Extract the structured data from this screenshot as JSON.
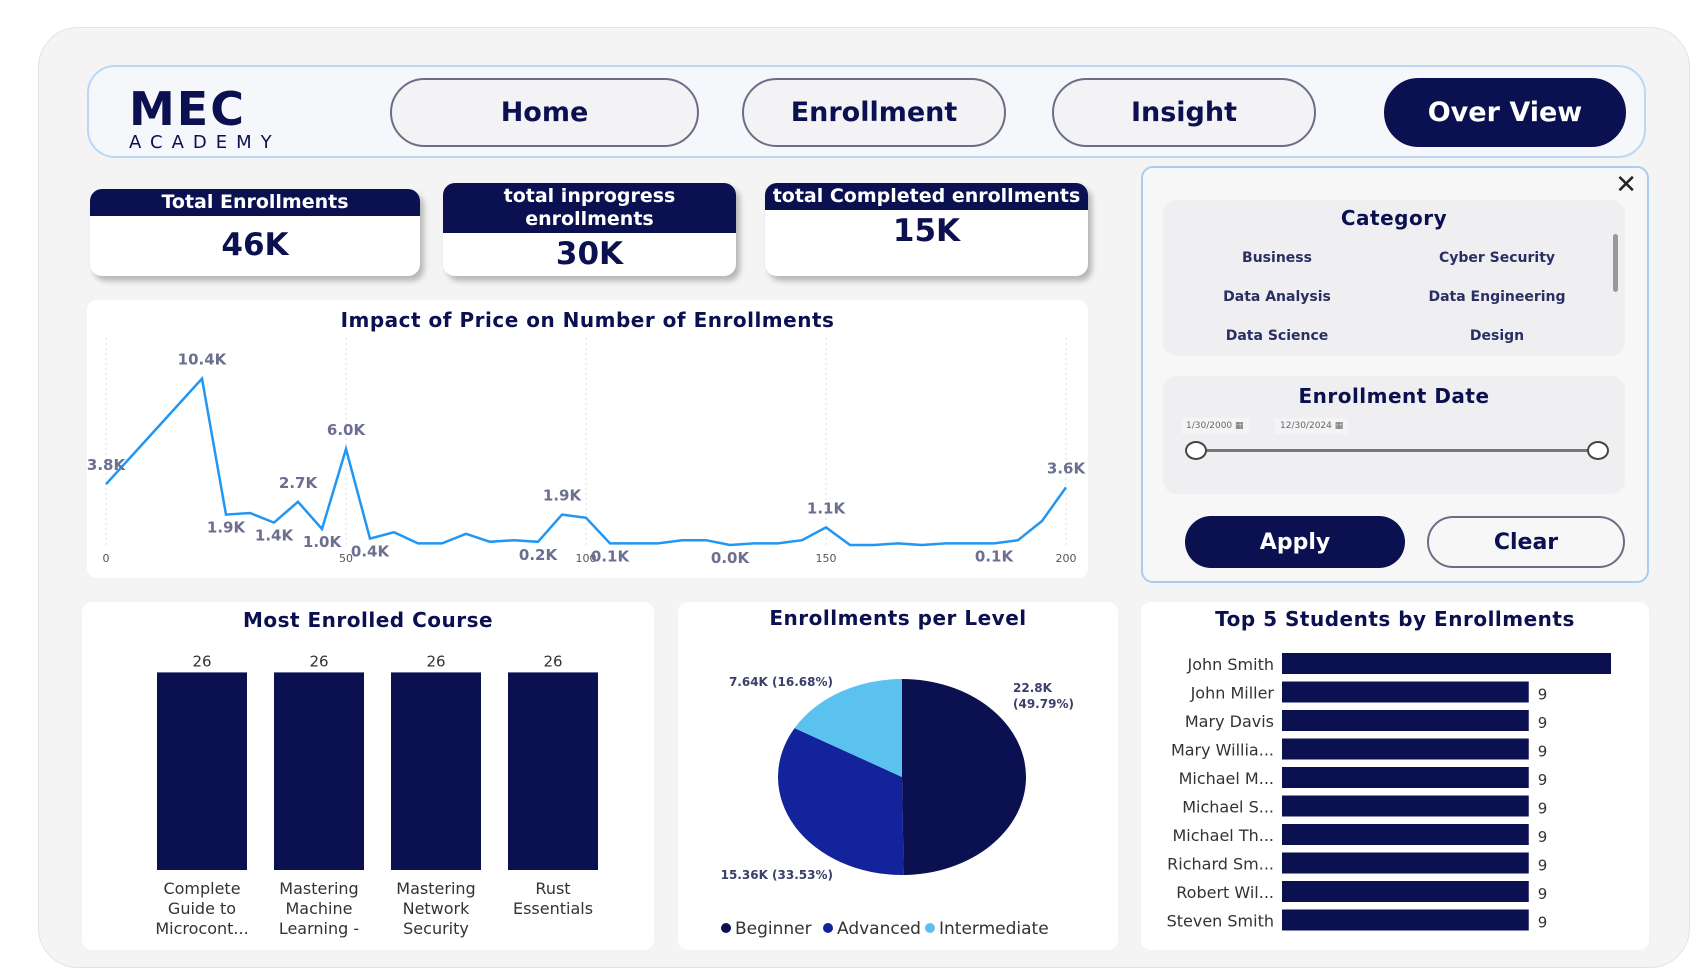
{
  "logo": {
    "text": "MEC",
    "subtext": "ACADEMY"
  },
  "nav": [
    {
      "label": "Home",
      "active": false
    },
    {
      "label": "Enrollment",
      "active": false
    },
    {
      "label": "Insight",
      "active": false
    },
    {
      "label": "Over View",
      "active": true
    }
  ],
  "kpis": [
    {
      "title": "Total Enrollments",
      "value": "46K"
    },
    {
      "title": "total inprogress enrollments",
      "value": "30K"
    },
    {
      "title": "total Completed enrollments",
      "value": "15K"
    }
  ],
  "filters": {
    "close_icon": "x-icon",
    "category": {
      "title": "Category",
      "items": [
        "Business",
        "Cyber Security",
        "Data Analysis",
        "Data Engineering",
        "Data Science",
        "Design"
      ]
    },
    "date": {
      "title": "Enrollment Date",
      "start": "1/30/2000",
      "end": "12/30/2024",
      "range": [
        0,
        1
      ]
    },
    "apply": "Apply",
    "clear": "Clear"
  },
  "colors": {
    "navy": "#0b1150",
    "line": "#2196f3",
    "advanced": "#13239b",
    "intermediate": "#5bc2f0"
  },
  "chart_data": [
    {
      "type": "line",
      "title": "Impact of Price on Number of Enrollments",
      "xlim": [
        0,
        200
      ],
      "xticks": [
        "0",
        "50",
        "100",
        "150",
        "200"
      ],
      "grid": "vertical-dotted",
      "points": [
        {
          "x": 0,
          "y": 3.8,
          "label": "3.8K"
        },
        {
          "x": 20,
          "y": 10.4,
          "label": "10.4K"
        },
        {
          "x": 25,
          "y": 1.9,
          "label": "1.9K"
        },
        {
          "x": 30,
          "y": 2.0
        },
        {
          "x": 35,
          "y": 1.4,
          "label": "1.4K"
        },
        {
          "x": 40,
          "y": 2.7,
          "label": "2.7K"
        },
        {
          "x": 45,
          "y": 1.0,
          "label": "1.0K"
        },
        {
          "x": 50,
          "y": 6.0,
          "label": "6.0K"
        },
        {
          "x": 55,
          "y": 0.4,
          "label": "0.4K"
        },
        {
          "x": 60,
          "y": 0.8
        },
        {
          "x": 65,
          "y": 0.1
        },
        {
          "x": 70,
          "y": 0.1
        },
        {
          "x": 75,
          "y": 0.7
        },
        {
          "x": 80,
          "y": 0.2
        },
        {
          "x": 85,
          "y": 0.3
        },
        {
          "x": 90,
          "y": 0.2,
          "label": "0.2K"
        },
        {
          "x": 95,
          "y": 1.9,
          "label": "1.9K"
        },
        {
          "x": 100,
          "y": 1.7
        },
        {
          "x": 105,
          "y": 0.1,
          "label": "0.1K"
        },
        {
          "x": 110,
          "y": 0.1
        },
        {
          "x": 115,
          "y": 0.1
        },
        {
          "x": 120,
          "y": 0.3
        },
        {
          "x": 125,
          "y": 0.3
        },
        {
          "x": 130,
          "y": 0.0,
          "label": "0.0K"
        },
        {
          "x": 135,
          "y": 0.1
        },
        {
          "x": 140,
          "y": 0.1
        },
        {
          "x": 145,
          "y": 0.3
        },
        {
          "x": 150,
          "y": 1.1,
          "label": "1.1K"
        },
        {
          "x": 155,
          "y": 0.0
        },
        {
          "x": 160,
          "y": 0.0
        },
        {
          "x": 165,
          "y": 0.1
        },
        {
          "x": 170,
          "y": 0.0
        },
        {
          "x": 175,
          "y": 0.1
        },
        {
          "x": 180,
          "y": 0.1
        },
        {
          "x": 185,
          "y": 0.1,
          "label": "0.1K"
        },
        {
          "x": 190,
          "y": 0.3
        },
        {
          "x": 195,
          "y": 1.5
        },
        {
          "x": 200,
          "y": 3.6,
          "label": "3.6K"
        }
      ]
    },
    {
      "type": "bar",
      "title": "Most Enrolled Course",
      "categories": [
        "Complete Guide to Microcont...",
        "Mastering Machine Learning - ...",
        "Mastering Network Security",
        "Rust Essentials"
      ],
      "values": [
        26,
        26,
        26,
        26
      ]
    },
    {
      "type": "pie",
      "title": "Enrollments per Level",
      "slices": [
        {
          "name": "Beginner",
          "value": 22.8,
          "label": "22.8K (49.79%)"
        },
        {
          "name": "Advanced",
          "value": 15.36,
          "label": "15.36K (33.53%)"
        },
        {
          "name": "Intermediate",
          "value": 7.64,
          "label": "7.64K (16.68%)"
        }
      ],
      "legend": "bottom"
    },
    {
      "type": "bar-horizontal",
      "title": "Top 5 Students by Enrollments",
      "categories": [
        "John Smith",
        "John Miller",
        "Mary Davis",
        "Mary Willia...",
        "Michael M...",
        "Michael S...",
        "Michael Th...",
        "Richard Sm...",
        "Robert Wil...",
        "Steven Smith"
      ],
      "values": [
        12,
        9,
        9,
        9,
        9,
        9,
        9,
        9,
        9,
        9
      ],
      "value_labels": [
        "",
        "9",
        "9",
        "9",
        "9",
        "9",
        "9",
        "9",
        "9",
        "9"
      ]
    }
  ]
}
